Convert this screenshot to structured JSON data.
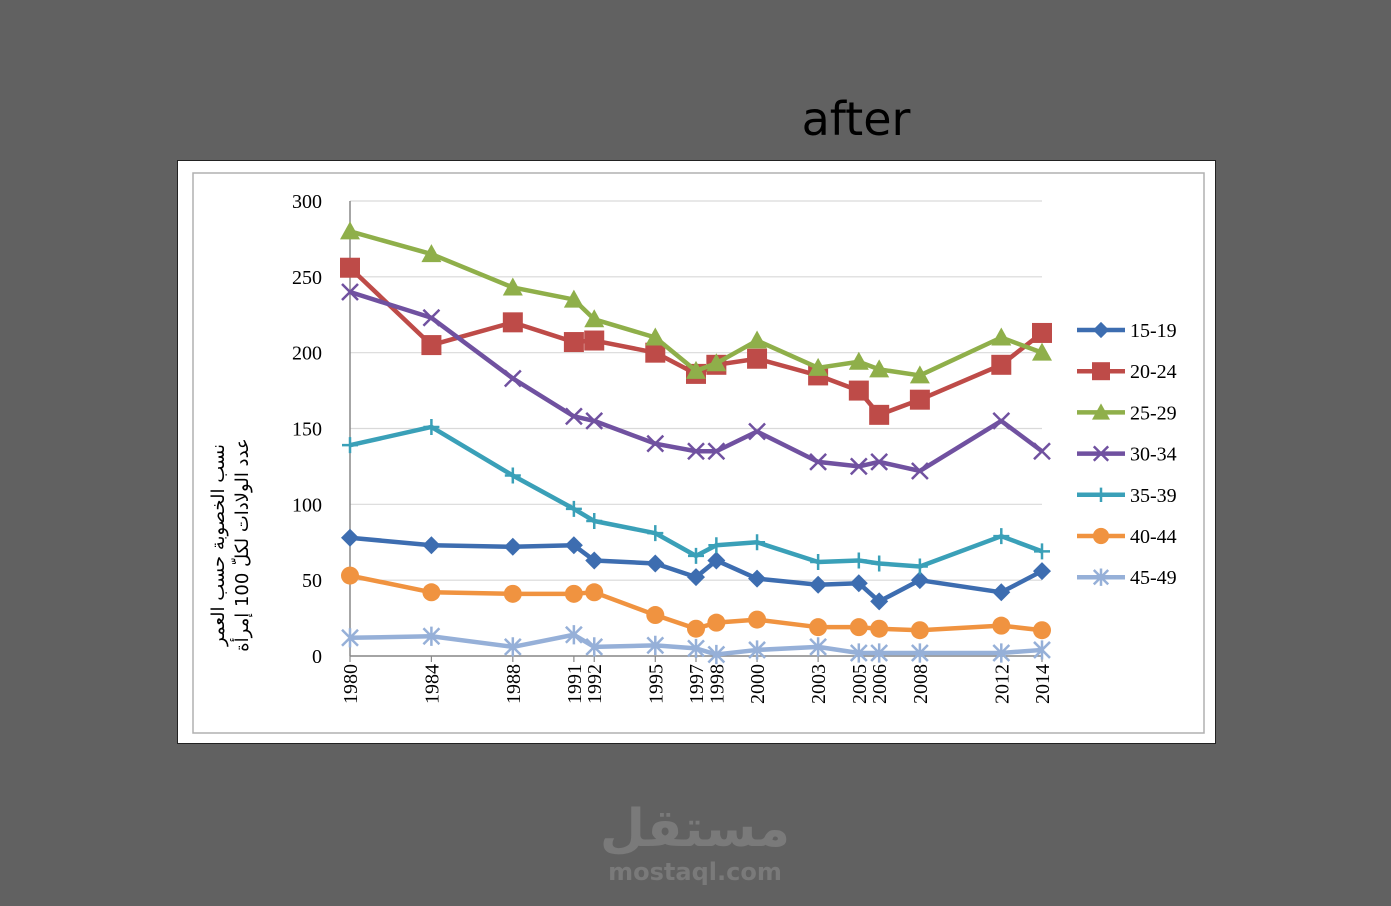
{
  "slide": {
    "title": "after"
  },
  "watermark": {
    "arabic": "مستقل",
    "latin": "mostaql.com"
  },
  "chart_data": {
    "type": "line",
    "ylabel_lines": [
      "نسب الخصوبة حسب العمر",
      "عدد الولادات لكلّ 100 إمرأة"
    ],
    "ylim": [
      0,
      300
    ],
    "yticks": [
      0,
      50,
      100,
      150,
      200,
      250,
      300
    ],
    "grid": true,
    "legend_position": "right",
    "x": [
      1980,
      1984,
      1988,
      1991,
      1992,
      1995,
      1997,
      1998,
      2000,
      2003,
      2005,
      2006,
      2008,
      2012,
      2014
    ],
    "series": [
      {
        "name": "15-19",
        "color": "#3d6db0",
        "marker": "diamond",
        "values": [
          78,
          73,
          72,
          73,
          63,
          61,
          52,
          63,
          51,
          47,
          48,
          36,
          50,
          42,
          56
        ]
      },
      {
        "name": "20-24",
        "color": "#be4b48",
        "marker": "square",
        "values": [
          256,
          205,
          220,
          207,
          208,
          200,
          186,
          192,
          196,
          185,
          175,
          159,
          169,
          192,
          213
        ]
      },
      {
        "name": "25-29",
        "color": "#8faf4a",
        "marker": "triangle",
        "values": [
          280,
          265,
          243,
          235,
          222,
          210,
          188,
          193,
          208,
          190,
          194,
          189,
          185,
          210,
          200
        ]
      },
      {
        "name": "30-34",
        "color": "#7051a0",
        "marker": "x",
        "values": [
          240,
          223,
          183,
          158,
          155,
          140,
          135,
          135,
          148,
          128,
          125,
          128,
          122,
          155,
          135
        ]
      },
      {
        "name": "35-39",
        "color": "#3aa0b8",
        "marker": "plus",
        "values": [
          139,
          151,
          119,
          97,
          89,
          81,
          66,
          73,
          75,
          62,
          63,
          61,
          59,
          79,
          69
        ]
      },
      {
        "name": "40-44",
        "color": "#f09340",
        "marker": "circle",
        "values": [
          53,
          42,
          41,
          41,
          42,
          27,
          18,
          22,
          24,
          19,
          19,
          18,
          17,
          20,
          17
        ]
      },
      {
        "name": "45-49",
        "color": "#96b0d8",
        "marker": "star",
        "values": [
          12,
          13,
          6,
          14,
          6,
          7,
          5,
          1,
          4,
          6,
          2,
          2,
          2,
          2,
          4
        ]
      }
    ]
  }
}
